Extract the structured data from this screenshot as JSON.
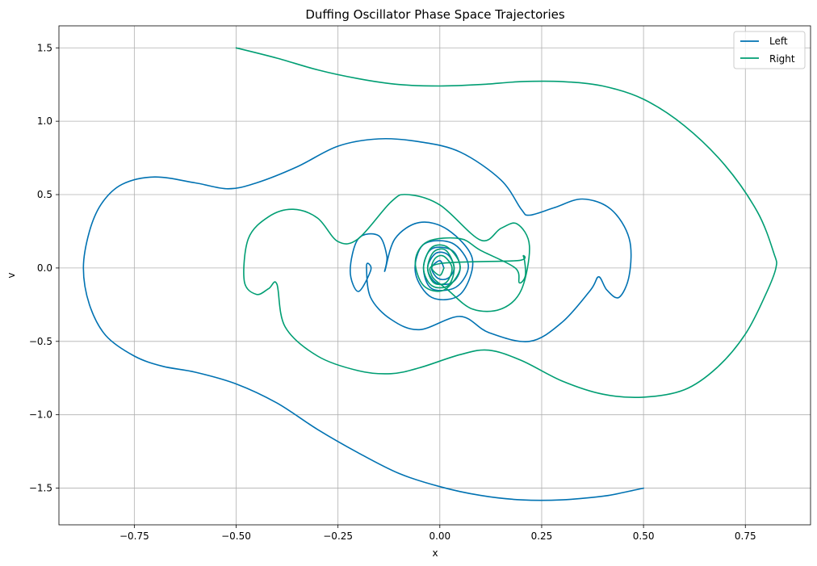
{
  "chart_data": {
    "type": "line",
    "title": "Duffing Oscillator Phase Space Trajectories",
    "xlabel": "x",
    "ylabel": "v",
    "xlim": [
      -0.935,
      0.91
    ],
    "ylim": [
      -1.75,
      1.65
    ],
    "xticks": [
      -0.75,
      -0.5,
      -0.25,
      0.0,
      0.25,
      0.5,
      0.75
    ],
    "xtick_labels": [
      "−0.75",
      "−0.50",
      "−0.25",
      "0.00",
      "0.25",
      "0.50",
      "0.75"
    ],
    "yticks": [
      -1.5,
      -1.0,
      -0.5,
      0.0,
      0.5,
      1.0,
      1.5
    ],
    "ytick_labels": [
      "−1.5",
      "−1.0",
      "−0.5",
      "0.0",
      "0.5",
      "1.0",
      "1.5"
    ],
    "grid": true,
    "legend_position": "top-right",
    "series": [
      {
        "name": "Left",
        "color": "#0072b2",
        "points": [
          [
            0.5,
            -1.5
          ],
          [
            0.45,
            -1.53
          ],
          [
            0.4,
            -1.555
          ],
          [
            0.3,
            -1.58
          ],
          [
            0.2,
            -1.58
          ],
          [
            0.1,
            -1.55
          ],
          [
            0.0,
            -1.49
          ],
          [
            -0.1,
            -1.4
          ],
          [
            -0.2,
            -1.26
          ],
          [
            -0.3,
            -1.1
          ],
          [
            -0.4,
            -0.92
          ],
          [
            -0.5,
            -0.79
          ],
          [
            -0.6,
            -0.71
          ],
          [
            -0.68,
            -0.67
          ],
          [
            -0.75,
            -0.6
          ],
          [
            -0.82,
            -0.46
          ],
          [
            -0.86,
            -0.25
          ],
          [
            -0.875,
            0.0
          ],
          [
            -0.86,
            0.25
          ],
          [
            -0.83,
            0.44
          ],
          [
            -0.78,
            0.57
          ],
          [
            -0.7,
            0.62
          ],
          [
            -0.6,
            0.58
          ],
          [
            -0.52,
            0.54
          ],
          [
            -0.45,
            0.58
          ],
          [
            -0.35,
            0.69
          ],
          [
            -0.25,
            0.83
          ],
          [
            -0.15,
            0.88
          ],
          [
            -0.05,
            0.86
          ],
          [
            0.05,
            0.79
          ],
          [
            0.15,
            0.6
          ],
          [
            0.2,
            0.4
          ],
          [
            0.22,
            0.36
          ],
          [
            0.28,
            0.41
          ],
          [
            0.35,
            0.47
          ],
          [
            0.42,
            0.4
          ],
          [
            0.465,
            0.2
          ],
          [
            0.465,
            -0.05
          ],
          [
            0.44,
            -0.2
          ],
          [
            0.41,
            -0.15
          ],
          [
            0.39,
            -0.06
          ],
          [
            0.37,
            -0.15
          ],
          [
            0.3,
            -0.37
          ],
          [
            0.22,
            -0.5
          ],
          [
            0.12,
            -0.44
          ],
          [
            0.05,
            -0.33
          ],
          [
            -0.05,
            -0.42
          ],
          [
            -0.12,
            -0.35
          ],
          [
            -0.17,
            -0.2
          ],
          [
            -0.18,
            0.0
          ],
          [
            -0.175,
            0.03
          ],
          [
            -0.17,
            -0.02
          ],
          [
            -0.2,
            -0.16
          ],
          [
            -0.22,
            -0.02
          ],
          [
            -0.2,
            0.2
          ],
          [
            -0.15,
            0.22
          ],
          [
            -0.13,
            0.08
          ],
          [
            -0.135,
            -0.02
          ],
          [
            -0.11,
            0.2
          ],
          [
            -0.05,
            0.31
          ],
          [
            0.02,
            0.26
          ],
          [
            0.08,
            0.06
          ],
          [
            0.05,
            -0.18
          ],
          [
            -0.02,
            -0.2
          ],
          [
            -0.06,
            -0.03
          ],
          [
            -0.04,
            0.16
          ],
          [
            0.03,
            0.17
          ],
          [
            0.07,
            0.02
          ],
          [
            0.04,
            -0.13
          ],
          [
            -0.02,
            -0.14
          ],
          [
            -0.04,
            0.0
          ],
          [
            -0.02,
            0.13
          ],
          [
            0.03,
            0.12
          ],
          [
            0.05,
            0.0
          ],
          [
            0.03,
            -0.1
          ],
          [
            -0.01,
            -0.1
          ],
          [
            -0.03,
            0.0
          ],
          [
            -0.01,
            0.1
          ],
          [
            0.02,
            0.09
          ],
          [
            0.035,
            0.0
          ],
          [
            0.02,
            -0.07
          ],
          [
            -0.005,
            -0.07
          ],
          [
            -0.02,
            0.0
          ],
          [
            0.0,
            0.05
          ],
          [
            0.01,
            0.0
          ]
        ]
      },
      {
        "name": "Right",
        "color": "#009e73",
        "points": [
          [
            -0.5,
            1.5
          ],
          [
            -0.4,
            1.43
          ],
          [
            -0.3,
            1.35
          ],
          [
            -0.2,
            1.29
          ],
          [
            -0.1,
            1.25
          ],
          [
            0.0,
            1.24
          ],
          [
            0.1,
            1.25
          ],
          [
            0.2,
            1.27
          ],
          [
            0.3,
            1.27
          ],
          [
            0.4,
            1.24
          ],
          [
            0.5,
            1.15
          ],
          [
            0.6,
            0.97
          ],
          [
            0.7,
            0.7
          ],
          [
            0.78,
            0.38
          ],
          [
            0.82,
            0.1
          ],
          [
            0.825,
            0.0
          ],
          [
            0.8,
            -0.18
          ],
          [
            0.75,
            -0.45
          ],
          [
            0.68,
            -0.68
          ],
          [
            0.6,
            -0.83
          ],
          [
            0.5,
            -0.88
          ],
          [
            0.4,
            -0.86
          ],
          [
            0.3,
            -0.77
          ],
          [
            0.2,
            -0.63
          ],
          [
            0.12,
            -0.56
          ],
          [
            0.05,
            -0.59
          ],
          [
            -0.05,
            -0.68
          ],
          [
            -0.12,
            -0.72
          ],
          [
            -0.2,
            -0.7
          ],
          [
            -0.3,
            -0.6
          ],
          [
            -0.38,
            -0.4
          ],
          [
            -0.4,
            -0.11
          ],
          [
            -0.42,
            -0.14
          ],
          [
            -0.45,
            -0.18
          ],
          [
            -0.48,
            -0.09
          ],
          [
            -0.47,
            0.2
          ],
          [
            -0.42,
            0.35
          ],
          [
            -0.36,
            0.4
          ],
          [
            -0.3,
            0.34
          ],
          [
            -0.25,
            0.18
          ],
          [
            -0.2,
            0.2
          ],
          [
            -0.12,
            0.45
          ],
          [
            -0.08,
            0.5
          ],
          [
            0.0,
            0.43
          ],
          [
            0.1,
            0.19
          ],
          [
            0.15,
            0.27
          ],
          [
            0.19,
            0.3
          ],
          [
            0.22,
            0.15
          ],
          [
            0.2,
            -0.15
          ],
          [
            0.15,
            -0.28
          ],
          [
            0.08,
            -0.28
          ],
          [
            0.02,
            -0.15
          ],
          [
            -0.02,
            -0.05
          ],
          [
            0.0,
            0.03
          ],
          [
            0.19,
            0.05
          ],
          [
            0.205,
            0.08
          ],
          [
            0.21,
            -0.05
          ],
          [
            0.195,
            -0.1
          ],
          [
            0.185,
            0.0
          ],
          [
            0.1,
            0.12
          ],
          [
            0.05,
            0.2
          ],
          [
            -0.03,
            0.18
          ],
          [
            -0.06,
            0.05
          ],
          [
            -0.04,
            -0.12
          ],
          [
            0.01,
            -0.15
          ],
          [
            0.05,
            0.0
          ],
          [
            0.02,
            0.14
          ],
          [
            -0.02,
            0.14
          ],
          [
            -0.04,
            0.0
          ],
          [
            -0.02,
            -0.12
          ],
          [
            0.02,
            -0.12
          ],
          [
            0.035,
            0.0
          ],
          [
            0.015,
            0.12
          ],
          [
            -0.015,
            0.11
          ],
          [
            -0.03,
            0.0
          ],
          [
            -0.015,
            -0.1
          ],
          [
            0.015,
            -0.1
          ],
          [
            0.03,
            0.0
          ],
          [
            0.01,
            0.08
          ],
          [
            -0.01,
            0.07
          ],
          [
            -0.02,
            0.0
          ],
          [
            0.0,
            -0.05
          ],
          [
            0.01,
            0.0
          ]
        ]
      }
    ]
  }
}
